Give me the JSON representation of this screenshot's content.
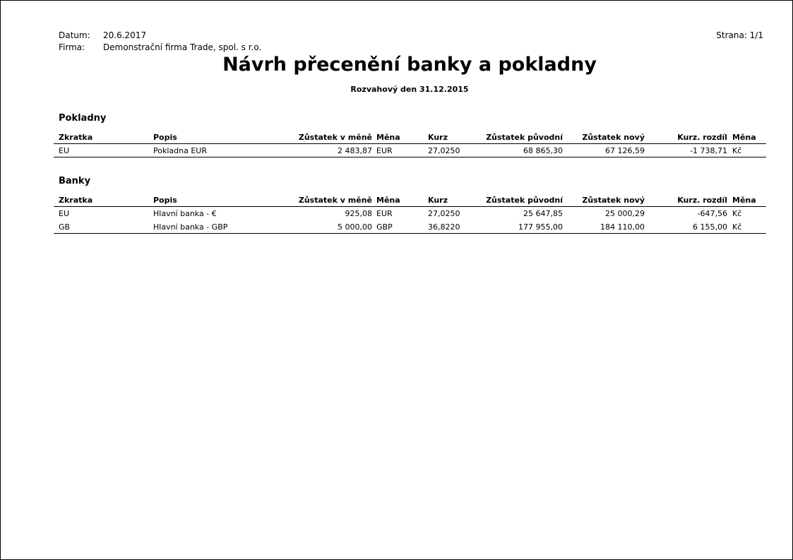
{
  "header": {
    "date_label": "Datum:",
    "date": "20.6.2017",
    "company_label": "Firma:",
    "company": "Demonstrační firma Trade, spol. s r.o.",
    "page": "Strana: 1/1"
  },
  "title": "Návrh přecenění banky a pokladny",
  "subtitle": "Rozvahový den 31.12.2015",
  "columns": [
    "Zkratka",
    "Popis",
    "Zůstatek v měně",
    "Měna",
    "Kurz",
    "Zůstatek původní",
    "Zůstatek nový",
    "Kurz. rozdíl",
    "Měna"
  ],
  "sections": [
    {
      "name": "Pokladny",
      "rows": [
        [
          "EU",
          "Pokladna EUR",
          "2 483,87",
          "EUR",
          "27,0250",
          "68 865,30",
          "67 126,59",
          "-1 738,71",
          "Kč"
        ]
      ]
    },
    {
      "name": "Banky",
      "rows": [
        [
          "EU",
          "Hlavní banka - €",
          "925,08",
          "EUR",
          "27,0250",
          "25 647,85",
          "25 000,29",
          "-647,56",
          "Kč"
        ],
        [
          "GB",
          "Hlavní banka - GBP",
          "5 000,00",
          "GBP",
          "36,8220",
          "177 955,00",
          "184 110,00",
          "6 155,00",
          "Kč"
        ]
      ]
    }
  ]
}
